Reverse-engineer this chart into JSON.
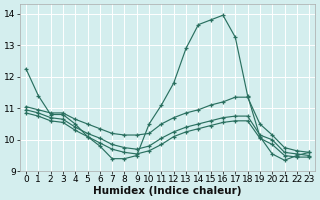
{
  "xlabel": "Humidex (Indice chaleur)",
  "ylabel": "",
  "xlim": [
    -0.5,
    23.5
  ],
  "ylim": [
    9.0,
    14.3
  ],
  "yticks": [
    9,
    10,
    11,
    12,
    13,
    14
  ],
  "xticks": [
    0,
    1,
    2,
    3,
    4,
    5,
    6,
    7,
    8,
    9,
    10,
    11,
    12,
    13,
    14,
    15,
    16,
    17,
    18,
    19,
    20,
    21,
    22,
    23
  ],
  "bg_color": "#d4eeee",
  "grid_color": "#ffffff",
  "line_color": "#2a7060",
  "series": [
    {
      "x": [
        0,
        1,
        2,
        3,
        4,
        5,
        6,
        7,
        8,
        9,
        10,
        11,
        12,
        13,
        14,
        15,
        16,
        17,
        18,
        19,
        20,
        21,
        22,
        23
      ],
      "y": [
        12.25,
        11.4,
        10.8,
        10.8,
        10.5,
        10.1,
        9.8,
        9.4,
        9.4,
        9.5,
        10.5,
        11.1,
        11.8,
        12.9,
        13.65,
        13.8,
        13.95,
        13.25,
        11.4,
        10.1,
        9.55,
        9.35,
        9.5,
        9.6
      ]
    },
    {
      "x": [
        0,
        1,
        2,
        3,
        4,
        5,
        6,
        7,
        8,
        9,
        10,
        11,
        12,
        13,
        14,
        15,
        16,
        17,
        18,
        19,
        20,
        21,
        22,
        23
      ],
      "y": [
        11.05,
        10.95,
        10.85,
        10.85,
        10.65,
        10.5,
        10.35,
        10.2,
        10.15,
        10.15,
        10.2,
        10.5,
        10.7,
        10.85,
        10.95,
        11.1,
        11.2,
        11.35,
        11.35,
        10.5,
        10.15,
        9.75,
        9.65,
        9.6
      ]
    },
    {
      "x": [
        0,
        1,
        2,
        3,
        4,
        5,
        6,
        7,
        8,
        9,
        10,
        11,
        12,
        13,
        14,
        15,
        16,
        17,
        18,
        19,
        20,
        21,
        22,
        23
      ],
      "y": [
        10.95,
        10.85,
        10.7,
        10.65,
        10.4,
        10.2,
        10.05,
        9.85,
        9.75,
        9.7,
        9.8,
        10.05,
        10.25,
        10.4,
        10.5,
        10.6,
        10.7,
        10.75,
        10.75,
        10.15,
        10.0,
        9.6,
        9.55,
        9.5
      ]
    },
    {
      "x": [
        0,
        1,
        2,
        3,
        4,
        5,
        6,
        7,
        8,
        9,
        10,
        11,
        12,
        13,
        14,
        15,
        16,
        17,
        18,
        19,
        20,
        21,
        22,
        23
      ],
      "y": [
        10.85,
        10.75,
        10.6,
        10.55,
        10.3,
        10.1,
        9.9,
        9.7,
        9.6,
        9.55,
        9.65,
        9.85,
        10.1,
        10.25,
        10.35,
        10.45,
        10.55,
        10.6,
        10.6,
        10.05,
        9.85,
        9.5,
        9.45,
        9.45
      ]
    }
  ],
  "tick_fontsize": 6.5,
  "label_fontsize": 7.5
}
